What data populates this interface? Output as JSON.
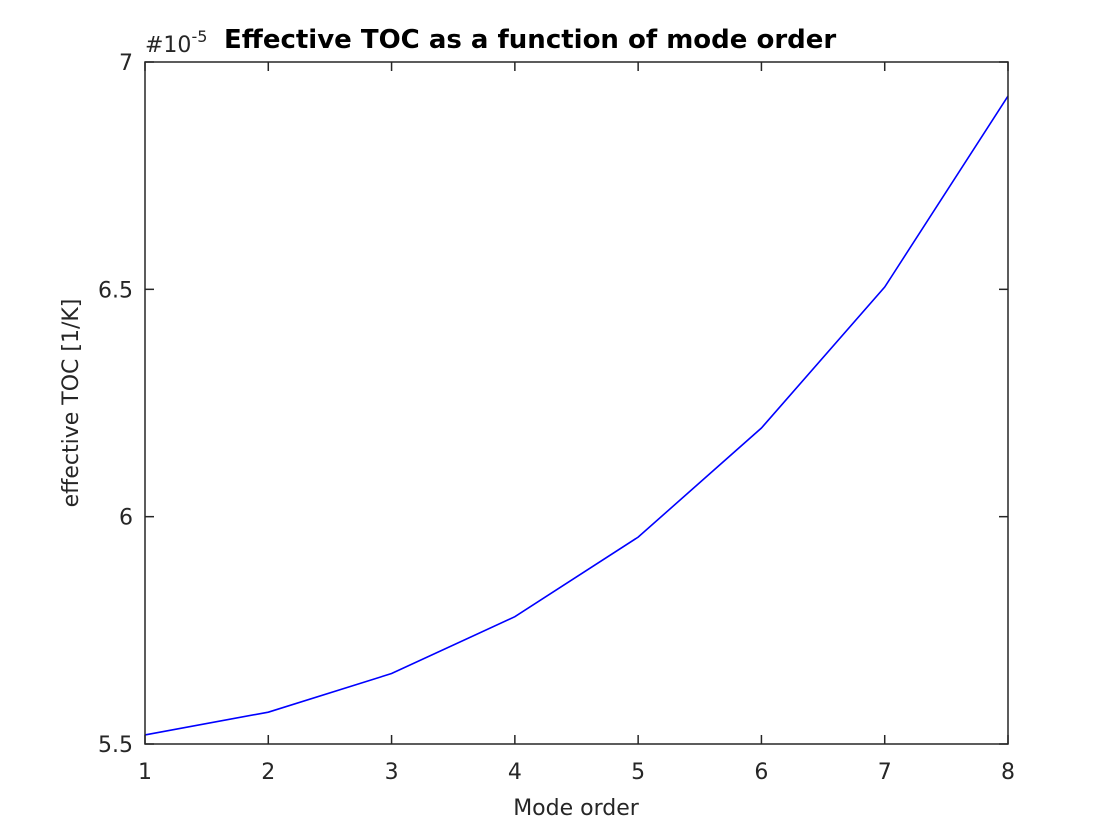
{
  "chart_data": {
    "type": "line",
    "title": "Effective TOC as a function of mode order",
    "xlabel": "Mode order",
    "ylabel": "effective TOC [1/K]",
    "y_exponent_label": "#10",
    "y_exponent_power": "-5",
    "xlim": [
      1,
      8
    ],
    "ylim": [
      5.5,
      7
    ],
    "xticks": [
      "1",
      "2",
      "3",
      "4",
      "5",
      "6",
      "7",
      "8"
    ],
    "yticks": [
      "5.5",
      "6",
      "6.5",
      "7"
    ],
    "grid": false,
    "series": [
      {
        "x": [
          1,
          2,
          3,
          4,
          5,
          6,
          7,
          8
        ],
        "values": [
          5.52,
          5.57,
          5.655,
          5.78,
          5.955,
          6.195,
          6.505,
          6.925
        ],
        "color": "#0000ff"
      }
    ]
  }
}
